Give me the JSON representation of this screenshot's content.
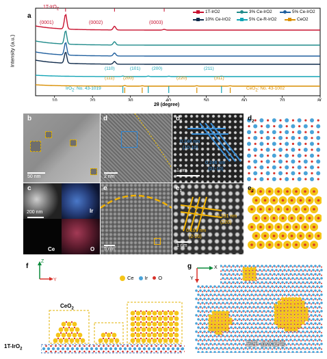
{
  "panel_a": {
    "label": "a",
    "ylabel": "Intensity (a.u.)",
    "xlabel": "2θ (degree)",
    "x_ticks": [
      "10",
      "20",
      "30",
      "40",
      "50",
      "60",
      "70",
      "80"
    ],
    "title_phase": "1T-IrO",
    "title_phase_sub": "2",
    "peak_labels": [
      "(0001)",
      "(0002)",
      "(0003)"
    ],
    "legend": [
      {
        "name": "1T-IrO",
        "sub": "2",
        "color": "#c8102e"
      },
      {
        "name": "3% Ce-IrO",
        "sub": "2",
        "color": "#1f8a8a"
      },
      {
        "name": "5% Ce-IrO",
        "sub": "2",
        "color": "#1f5f9e"
      },
      {
        "name": "10% Ce-IrO",
        "sub": "2",
        "color": "#0f2a4a"
      },
      {
        "name": "5% Ce-R-IrO",
        "sub": "2",
        "color": "#12a4b5"
      },
      {
        "name": "CeO",
        "sub": "2",
        "color": "#d98e00"
      }
    ],
    "rutile_peaks": [
      "(110)",
      "(101)",
      "(200)",
      "(211)"
    ],
    "ceria_peaks": [
      "(111)",
      "(200)",
      "(220)",
      "(311)"
    ],
    "ref_iro2": "IrO",
    "ref_iro2_sub": "2",
    "ref_iro2_tail": ": No. 43-1019",
    "ref_ceo2": "CeO",
    "ref_ceo2_sub": "2",
    "ref_ceo2_tail": ": No. 43-1002"
  },
  "chart_data": {
    "type": "line",
    "xlim": [
      5,
      80
    ],
    "ylabel": "Intensity (a.u.)",
    "xlabel": "2θ (degree)",
    "series": [
      {
        "name": "1T-IrO2",
        "color": "#c8102e",
        "peaks": [
          [
            12.9,
            1.0
          ],
          [
            25.8,
            0.25
          ],
          [
            38.9,
            0.05
          ]
        ]
      },
      {
        "name": "3% Ce-IrO2",
        "color": "#1f8a8a",
        "peaks": [
          [
            12.9,
            0.9
          ],
          [
            25.8,
            0.22
          ]
        ]
      },
      {
        "name": "5% Ce-IrO2",
        "color": "#1f5f9e",
        "peaks": [
          [
            12.9,
            0.85
          ],
          [
            25.8,
            0.2
          ]
        ]
      },
      {
        "name": "10% Ce-IrO2",
        "color": "#0f2a4a",
        "peaks": [
          [
            12.9,
            0.75
          ],
          [
            25.8,
            0.18
          ]
        ]
      },
      {
        "name": "5% Ce-R-IrO2",
        "color": "#12a4b5",
        "peaks": [
          [
            28.0,
            0.08
          ],
          [
            34.7,
            0.08
          ],
          [
            40.1,
            0.06
          ],
          [
            54.0,
            0.06
          ]
        ]
      },
      {
        "name": "CeO2",
        "color": "#d98e00",
        "peaks": [
          [
            28.5,
            0.1
          ],
          [
            33.1,
            0.06
          ],
          [
            47.5,
            0.07
          ],
          [
            56.3,
            0.06
          ]
        ]
      }
    ]
  },
  "panels": {
    "b": {
      "label": "b",
      "scale": "50 nm"
    },
    "c": {
      "label": "c",
      "scale": "200 nm",
      "maps": [
        "Ir",
        "Ce",
        "O"
      ]
    },
    "d": {
      "label": "d",
      "scale": "2 nm"
    },
    "e": {
      "label": "e",
      "scale": "5 nm"
    },
    "d1": {
      "label": "d",
      "label_sub": "1",
      "scale": "1 nm",
      "spacings": [
        "0.246 nm",
        "(10-10)",
        "0.246 nm",
        "(01-10)"
      ]
    },
    "e1": {
      "label": "e",
      "label_sub": "1",
      "scale": "1 nm",
      "spacings": [
        "0.191 nm",
        "(2-20)",
        "0.191 nm",
        "(220)"
      ]
    },
    "d2": {
      "label": "d",
      "label_sub": "2"
    },
    "e2": {
      "label": "e",
      "label_sub": "2"
    }
  },
  "panel_f": {
    "label": "f",
    "legend": [
      "Ce",
      "Ir",
      "O"
    ],
    "axis_z": "Z",
    "axis_y": "Y",
    "cluster_label": "CeO",
    "cluster_label_sub": "2",
    "substrate_label": "1T-IrO",
    "substrate_label_sub": "2"
  },
  "panel_g": {
    "label": "g",
    "axis_x": "X",
    "axis_y": "Y",
    "watermark": "知乎 @水复电"
  },
  "colors": {
    "ce": "#f5c518",
    "ir": "#4aa3d8",
    "o": "#d8322a"
  }
}
